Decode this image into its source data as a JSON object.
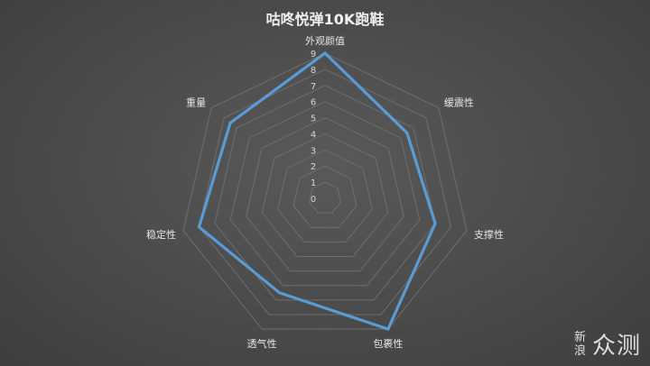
{
  "chart_data": {
    "type": "radar",
    "title": "咕咚悦弹10K跑鞋",
    "categories": [
      "外观颜值",
      "缓震性",
      "支撑性",
      "包裹性",
      "透气性",
      "稳定性",
      "重量"
    ],
    "values": [
      9,
      6.5,
      7,
      9,
      6.5,
      8,
      7.5
    ],
    "scale_ticks": [
      "0",
      "1",
      "2",
      "3",
      "4",
      "5",
      "6",
      "7",
      "8",
      "9"
    ],
    "range": [
      0,
      9
    ],
    "series_color": "#5b9bd5",
    "grid_color": "#6e6e6e"
  },
  "watermark": {
    "small": "新浪",
    "big": "众测"
  }
}
